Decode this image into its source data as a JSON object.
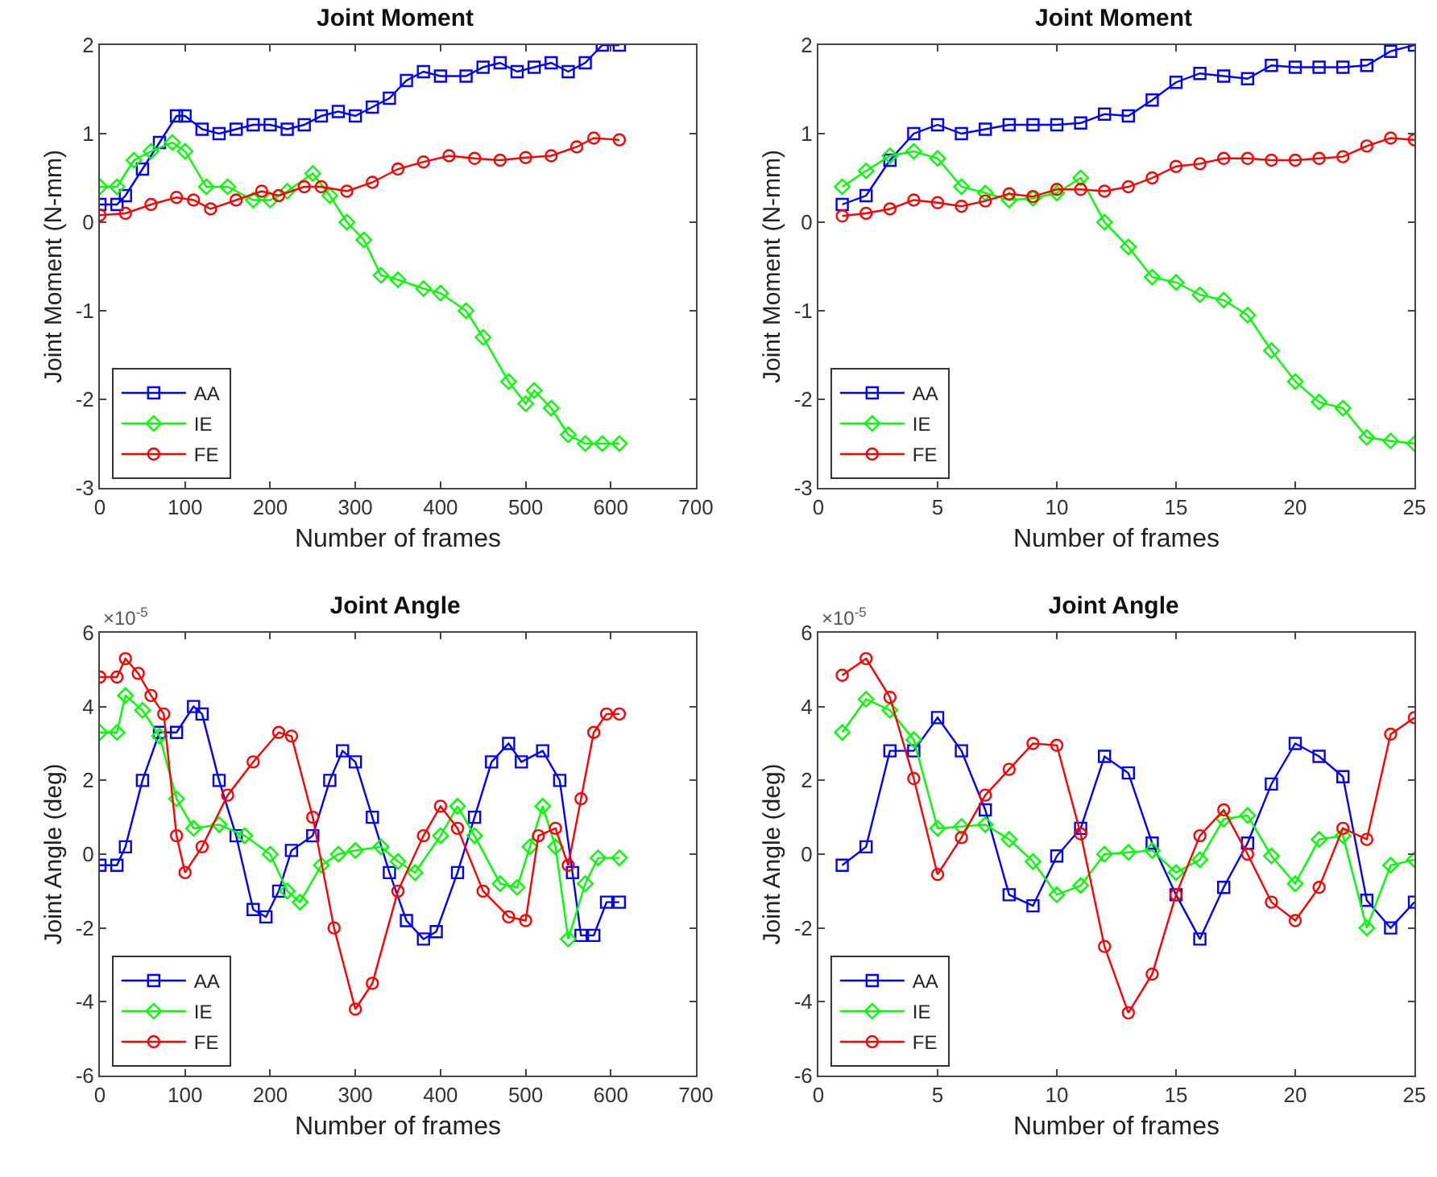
{
  "chart_data": [
    {
      "type": "line",
      "title": "Joint Moment",
      "xlabel": "Number of frames",
      "ylabel": "Joint Moment (N-mm)",
      "xlim": [
        0,
        700
      ],
      "xticks": [
        0,
        100,
        200,
        300,
        400,
        500,
        600,
        700
      ],
      "ylim": [
        -3,
        2
      ],
      "yticks": [
        -3,
        -2,
        -1,
        0,
        1,
        2
      ],
      "grid": false,
      "legend": "bottom left",
      "series": [
        {
          "name": "AA",
          "color": "#0000ff",
          "marker": "square",
          "x": [
            0,
            20,
            30,
            50,
            70,
            90,
            100,
            120,
            140,
            160,
            180,
            200,
            220,
            240,
            260,
            280,
            300,
            320,
            340,
            360,
            380,
            400,
            430,
            450,
            470,
            490,
            510,
            530,
            550,
            570,
            590,
            610
          ],
          "values": [
            0.2,
            0.2,
            0.3,
            0.6,
            0.9,
            1.2,
            1.2,
            1.05,
            1.0,
            1.05,
            1.1,
            1.1,
            1.05,
            1.1,
            1.2,
            1.25,
            1.2,
            1.3,
            1.4,
            1.6,
            1.7,
            1.65,
            1.65,
            1.75,
            1.8,
            1.7,
            1.75,
            1.8,
            1.7,
            1.8,
            2.0,
            2.0
          ]
        },
        {
          "name": "IE",
          "color": "#00ff00",
          "marker": "diamond",
          "x": [
            0,
            20,
            40,
            60,
            85,
            100,
            125,
            150,
            180,
            200,
            220,
            250,
            270,
            290,
            310,
            330,
            350,
            380,
            400,
            430,
            450,
            480,
            500,
            510,
            530,
            550,
            570,
            590,
            610
          ],
          "values": [
            0.4,
            0.4,
            0.7,
            0.8,
            0.9,
            0.8,
            0.4,
            0.4,
            0.25,
            0.25,
            0.35,
            0.55,
            0.3,
            0.0,
            -0.2,
            -0.6,
            -0.65,
            -0.75,
            -0.8,
            -1.0,
            -1.3,
            -1.8,
            -2.05,
            -1.9,
            -2.1,
            -2.4,
            -2.5,
            -2.5,
            -2.5
          ]
        },
        {
          "name": "FE",
          "color": "#ff0000",
          "marker": "circle",
          "x": [
            0,
            30,
            60,
            90,
            110,
            130,
            160,
            190,
            210,
            240,
            260,
            290,
            320,
            350,
            380,
            410,
            440,
            470,
            500,
            530,
            560,
            580,
            610
          ],
          "values": [
            0.08,
            0.1,
            0.2,
            0.28,
            0.25,
            0.15,
            0.25,
            0.35,
            0.3,
            0.4,
            0.4,
            0.35,
            0.45,
            0.6,
            0.68,
            0.75,
            0.72,
            0.7,
            0.73,
            0.75,
            0.85,
            0.95,
            0.93
          ]
        }
      ]
    },
    {
      "type": "line",
      "title": "Joint Moment",
      "xlabel": "Number of frames",
      "ylabel": "Joint Moment (N-mm)",
      "xlim": [
        0,
        25
      ],
      "xticks": [
        0,
        5,
        10,
        15,
        20,
        25
      ],
      "ylim": [
        -3,
        2
      ],
      "yticks": [
        -3,
        -2,
        -1,
        0,
        1,
        2
      ],
      "grid": false,
      "legend": "bottom left",
      "x": [
        1,
        2,
        3,
        4,
        5,
        6,
        7,
        8,
        9,
        10,
        11,
        12,
        13,
        14,
        15,
        16,
        17,
        18,
        19,
        20,
        21,
        22,
        23,
        24,
        25
      ],
      "series": [
        {
          "name": "AA",
          "color": "#0000ff",
          "marker": "square",
          "values": [
            0.2,
            0.3,
            0.7,
            1.0,
            1.1,
            1.0,
            1.05,
            1.1,
            1.1,
            1.1,
            1.12,
            1.22,
            1.2,
            1.38,
            1.58,
            1.68,
            1.65,
            1.62,
            1.77,
            1.75,
            1.75,
            1.75,
            1.77,
            1.93,
            2.0
          ]
        },
        {
          "name": "IE",
          "color": "#00ff00",
          "marker": "diamond",
          "values": [
            0.4,
            0.58,
            0.75,
            0.8,
            0.72,
            0.4,
            0.33,
            0.25,
            0.27,
            0.33,
            0.5,
            0.0,
            -0.28,
            -0.62,
            -0.68,
            -0.82,
            -0.88,
            -1.05,
            -1.45,
            -1.8,
            -2.03,
            -2.1,
            -2.43,
            -2.47,
            -2.5
          ]
        },
        {
          "name": "FE",
          "color": "#ff0000",
          "marker": "circle",
          "values": [
            0.07,
            0.1,
            0.15,
            0.25,
            0.22,
            0.18,
            0.24,
            0.32,
            0.29,
            0.37,
            0.37,
            0.35,
            0.4,
            0.5,
            0.63,
            0.66,
            0.72,
            0.72,
            0.7,
            0.7,
            0.72,
            0.74,
            0.86,
            0.95,
            0.93
          ]
        }
      ]
    },
    {
      "type": "line",
      "title": "Joint Angle",
      "xlabel": "Number of frames",
      "ylabel": "Joint Angle (deg)",
      "annotations": [
        "×10$^{-5}$"
      ],
      "xlim": [
        0,
        700
      ],
      "xticks": [
        0,
        100,
        200,
        300,
        400,
        500,
        600,
        700
      ],
      "ylim": [
        -6,
        6
      ],
      "yticks": [
        -6,
        -4,
        -2,
        0,
        2,
        4,
        6
      ],
      "grid": false,
      "legend": "bottom left",
      "series": [
        {
          "name": "AA",
          "color": "#0000ff",
          "marker": "square",
          "x": [
            0,
            20,
            30,
            50,
            70,
            90,
            110,
            120,
            140,
            160,
            180,
            195,
            210,
            225,
            250,
            270,
            285,
            300,
            320,
            340,
            360,
            380,
            395,
            420,
            440,
            460,
            480,
            495,
            520,
            540,
            555,
            565,
            580,
            595,
            610
          ],
          "values": [
            -0.3,
            -0.3,
            0.2,
            2,
            3.3,
            3.3,
            4.0,
            3.8,
            2.0,
            0.5,
            -1.5,
            -1.7,
            -1.0,
            0.1,
            0.5,
            2.0,
            2.8,
            2.5,
            1.0,
            -0.5,
            -1.8,
            -2.3,
            -2.1,
            -0.5,
            1.0,
            2.5,
            3.0,
            2.5,
            2.8,
            2.0,
            -0.5,
            -2.2,
            -2.2,
            -1.3,
            -1.3
          ]
        },
        {
          "name": "IE",
          "color": "#00ff00",
          "marker": "diamond",
          "x": [
            0,
            20,
            30,
            50,
            70,
            90,
            110,
            140,
            170,
            200,
            220,
            235,
            260,
            280,
            300,
            330,
            350,
            370,
            400,
            420,
            440,
            470,
            490,
            505,
            520,
            535,
            550,
            570,
            585,
            610
          ],
          "values": [
            3.3,
            3.3,
            4.3,
            3.9,
            3.2,
            1.5,
            0.7,
            0.8,
            0.5,
            0.0,
            -1.0,
            -1.3,
            -0.3,
            0.0,
            0.1,
            0.2,
            -0.2,
            -0.5,
            0.5,
            1.3,
            0.5,
            -0.8,
            -0.9,
            0.2,
            1.3,
            0.2,
            -2.3,
            -0.8,
            -0.1,
            -0.1
          ]
        },
        {
          "name": "FE",
          "color": "#ff0000",
          "marker": "circle",
          "x": [
            0,
            20,
            30,
            45,
            60,
            75,
            90,
            100,
            120,
            150,
            180,
            210,
            225,
            250,
            275,
            300,
            320,
            350,
            380,
            400,
            420,
            450,
            480,
            500,
            515,
            535,
            550,
            565,
            580,
            595,
            610
          ],
          "values": [
            4.8,
            4.8,
            5.3,
            4.9,
            4.3,
            3.8,
            0.5,
            -0.5,
            0.2,
            1.6,
            2.5,
            3.3,
            3.2,
            1.0,
            -2.0,
            -4.2,
            -3.5,
            -1.0,
            0.5,
            1.3,
            0.7,
            -1.0,
            -1.7,
            -1.8,
            0.5,
            0.7,
            -0.3,
            1.5,
            3.3,
            3.8,
            3.8
          ]
        }
      ]
    },
    {
      "type": "line",
      "title": "Joint Angle",
      "xlabel": "Number of frames",
      "ylabel": "Joint Angle (deg)",
      "annotations": [
        "×10$^{-5}$"
      ],
      "xlim": [
        0,
        25
      ],
      "xticks": [
        0,
        5,
        10,
        15,
        20,
        25
      ],
      "ylim": [
        -6,
        6
      ],
      "yticks": [
        -6,
        -4,
        -2,
        0,
        2,
        4,
        6
      ],
      "grid": false,
      "legend": "bottom left",
      "x": [
        1,
        2,
        3,
        4,
        5,
        6,
        7,
        8,
        9,
        10,
        11,
        12,
        13,
        14,
        15,
        16,
        17,
        18,
        19,
        20,
        21,
        22,
        23,
        24,
        25
      ],
      "series": [
        {
          "name": "AA",
          "color": "#0000ff",
          "marker": "square",
          "values": [
            -0.3,
            0.2,
            2.8,
            2.8,
            3.7,
            2.8,
            1.2,
            -1.1,
            -1.4,
            -0.05,
            0.7,
            2.65,
            2.2,
            0.3,
            -1.1,
            -2.3,
            -0.9,
            0.3,
            1.9,
            3.0,
            2.65,
            2.1,
            -1.25,
            -2.0,
            -1.3
          ]
        },
        {
          "name": "IE",
          "color": "#00ff00",
          "marker": "diamond",
          "values": [
            3.3,
            4.2,
            3.9,
            3.1,
            0.7,
            0.75,
            0.8,
            0.4,
            -0.2,
            -1.1,
            -0.85,
            0.0,
            0.05,
            0.1,
            -0.5,
            -0.15,
            0.95,
            1.05,
            -0.05,
            -0.8,
            0.4,
            0.5,
            -2.0,
            -0.3,
            -0.15
          ]
        },
        {
          "name": "FE",
          "color": "#ff0000",
          "marker": "circle",
          "values": [
            4.85,
            5.3,
            4.25,
            2.05,
            -0.55,
            0.45,
            1.6,
            2.3,
            3.0,
            2.95,
            0.55,
            -2.5,
            -4.3,
            -3.25,
            -1.1,
            0.5,
            1.2,
            0.0,
            -1.3,
            -1.8,
            -0.9,
            0.7,
            0.4,
            3.25,
            3.7
          ]
        }
      ]
    }
  ]
}
